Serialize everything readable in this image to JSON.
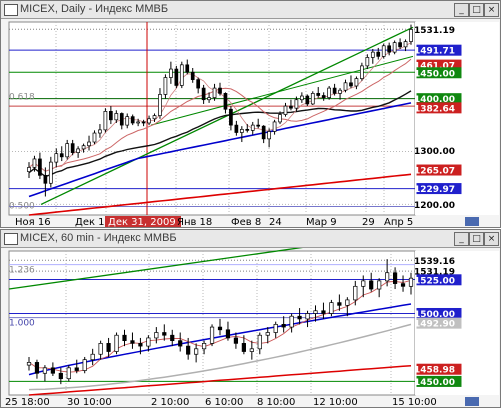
{
  "window1": {
    "title": "MICEX, Daily - Индекс ММВБ"
  },
  "window2": {
    "title": "MICEX, 60 min - Индекс ММВБ"
  },
  "chart_data": [
    {
      "type": "candlestick",
      "title": "MICEX, Daily - Индекс ММВБ",
      "ylim": [
        1180,
        1545
      ],
      "price_labels": [
        "1531.19",
        "1491.71",
        "1461.07",
        "1450.00",
        "1400.00",
        "1382.64",
        "1300.00",
        "1265.07",
        "1229.97",
        "1200.00"
      ],
      "fib_labels": [
        "0.618",
        "0.500"
      ],
      "x_labels": [
        "Ноя 16",
        "Дек 1",
        "Дек 31, 2009",
        "Янв 18",
        "Фев 8",
        "24",
        "Мар 9",
        "29",
        "Апр 5"
      ],
      "candles": [
        [
          1262,
          1280,
          1250,
          1270
        ],
        [
          1270,
          1292,
          1262,
          1286
        ],
        [
          1286,
          1298,
          1248,
          1255
        ],
        [
          1255,
          1270,
          1215,
          1240
        ],
        [
          1240,
          1290,
          1232,
          1280
        ],
        [
          1280,
          1306,
          1270,
          1296
        ],
        [
          1296,
          1310,
          1282,
          1290
        ],
        [
          1290,
          1322,
          1285,
          1315
        ],
        [
          1315,
          1322,
          1293,
          1298
        ],
        [
          1298,
          1310,
          1288,
          1305
        ],
        [
          1305,
          1315,
          1298,
          1311
        ],
        [
          1311,
          1330,
          1302,
          1318
        ],
        [
          1318,
          1340,
          1314,
          1335
        ],
        [
          1335,
          1352,
          1326,
          1341
        ],
        [
          1341,
          1382,
          1336,
          1376
        ],
        [
          1376,
          1386,
          1352,
          1360
        ],
        [
          1360,
          1378,
          1354,
          1372
        ],
        [
          1372,
          1374,
          1342,
          1350
        ],
        [
          1350,
          1372,
          1344,
          1366
        ],
        [
          1366,
          1370,
          1350,
          1354
        ],
        [
          1354,
          1362,
          1348,
          1356
        ],
        [
          1356,
          1360,
          1348,
          1354
        ],
        [
          1354,
          1368,
          1350,
          1362
        ],
        [
          1362,
          1372,
          1356,
          1368
        ],
        [
          1368,
          1420,
          1362,
          1408
        ],
        [
          1408,
          1446,
          1400,
          1440
        ],
        [
          1440,
          1470,
          1428,
          1456
        ],
        [
          1456,
          1462,
          1420,
          1425
        ],
        [
          1425,
          1470,
          1420,
          1464
        ],
        [
          1464,
          1474,
          1446,
          1450
        ],
        [
          1450,
          1458,
          1430,
          1436
        ],
        [
          1436,
          1440,
          1410,
          1420
        ],
        [
          1420,
          1426,
          1390,
          1398
        ],
        [
          1398,
          1412,
          1392,
          1402
        ],
        [
          1402,
          1428,
          1396,
          1420
        ],
        [
          1420,
          1430,
          1406,
          1410
        ],
        [
          1410,
          1412,
          1372,
          1380
        ],
        [
          1380,
          1386,
          1340,
          1350
        ],
        [
          1350,
          1358,
          1330,
          1336
        ],
        [
          1336,
          1348,
          1318,
          1342
        ],
        [
          1342,
          1352,
          1336,
          1340
        ],
        [
          1340,
          1356,
          1332,
          1350
        ],
        [
          1350,
          1362,
          1344,
          1348
        ],
        [
          1348,
          1350,
          1316,
          1324
        ],
        [
          1324,
          1344,
          1308,
          1338
        ],
        [
          1338,
          1360,
          1332,
          1356
        ],
        [
          1356,
          1376,
          1352,
          1370
        ],
        [
          1370,
          1392,
          1366,
          1386
        ],
        [
          1386,
          1398,
          1378,
          1382
        ],
        [
          1382,
          1404,
          1376,
          1398
        ],
        [
          1398,
          1412,
          1392,
          1405
        ],
        [
          1405,
          1408,
          1386,
          1390
        ],
        [
          1390,
          1414,
          1388,
          1410
        ],
        [
          1410,
          1422,
          1402,
          1406
        ],
        [
          1406,
          1412,
          1396,
          1402
        ],
        [
          1402,
          1424,
          1398,
          1420
        ],
        [
          1420,
          1428,
          1406,
          1410
        ],
        [
          1410,
          1420,
          1398,
          1416
        ],
        [
          1416,
          1436,
          1412,
          1430
        ],
        [
          1430,
          1444,
          1420,
          1424
        ],
        [
          1424,
          1442,
          1418,
          1438
        ],
        [
          1438,
          1468,
          1434,
          1462
        ],
        [
          1462,
          1484,
          1456,
          1478
        ],
        [
          1478,
          1494,
          1466,
          1488
        ],
        [
          1488,
          1496,
          1474,
          1480
        ],
        [
          1480,
          1504,
          1476,
          1500
        ],
        [
          1500,
          1506,
          1482,
          1488
        ],
        [
          1488,
          1510,
          1484,
          1506
        ],
        [
          1506,
          1514,
          1494,
          1498
        ],
        [
          1498,
          1512,
          1490,
          1508
        ],
        [
          1508,
          1540,
          1502,
          1531
        ]
      ]
    },
    {
      "type": "candlestick",
      "title": "MICEX, 60 min - Индекс ММВБ",
      "ylim": [
        1440,
        1546
      ],
      "price_labels": [
        "1539.16",
        "1531.19",
        "1525.00",
        "1500.00",
        "1492.90",
        "1458.98",
        "1450.00"
      ],
      "fib_labels": [
        "1.236",
        "1.000"
      ],
      "x_labels": [
        "25 18:00",
        "30 10:00",
        "2 10:00",
        "6 10:00",
        "8 10:00",
        "12 10:00",
        "15 10:00"
      ],
      "candles": [
        [
          1462,
          1468,
          1458,
          1464
        ],
        [
          1464,
          1466,
          1452,
          1456
        ],
        [
          1456,
          1462,
          1450,
          1460
        ],
        [
          1460,
          1464,
          1454,
          1456
        ],
        [
          1456,
          1460,
          1448,
          1452
        ],
        [
          1452,
          1462,
          1450,
          1460
        ],
        [
          1460,
          1466,
          1456,
          1458
        ],
        [
          1458,
          1468,
          1456,
          1466
        ],
        [
          1466,
          1474,
          1462,
          1470
        ],
        [
          1470,
          1480,
          1466,
          1478
        ],
        [
          1478,
          1482,
          1468,
          1472
        ],
        [
          1472,
          1486,
          1470,
          1484
        ],
        [
          1484,
          1488,
          1476,
          1480
        ],
        [
          1480,
          1486,
          1474,
          1478
        ],
        [
          1478,
          1482,
          1470,
          1476
        ],
        [
          1476,
          1484,
          1472,
          1482
        ],
        [
          1482,
          1490,
          1478,
          1486
        ],
        [
          1486,
          1492,
          1480,
          1484
        ],
        [
          1484,
          1488,
          1476,
          1480
        ],
        [
          1480,
          1486,
          1472,
          1476
        ],
        [
          1476,
          1482,
          1466,
          1470
        ],
        [
          1470,
          1478,
          1464,
          1474
        ],
        [
          1474,
          1480,
          1470,
          1478
        ],
        [
          1478,
          1492,
          1476,
          1490
        ],
        [
          1490,
          1496,
          1484,
          1488
        ],
        [
          1488,
          1494,
          1480,
          1482
        ],
        [
          1482,
          1486,
          1474,
          1478
        ],
        [
          1478,
          1484,
          1470,
          1472
        ],
        [
          1472,
          1480,
          1466,
          1474
        ],
        [
          1474,
          1486,
          1470,
          1484
        ],
        [
          1484,
          1490,
          1478,
          1486
        ],
        [
          1486,
          1494,
          1482,
          1492
        ],
        [
          1492,
          1498,
          1486,
          1490
        ],
        [
          1490,
          1500,
          1486,
          1498
        ],
        [
          1498,
          1504,
          1492,
          1496
        ],
        [
          1496,
          1502,
          1490,
          1500
        ],
        [
          1500,
          1506,
          1494,
          1502
        ],
        [
          1502,
          1508,
          1496,
          1500
        ],
        [
          1500,
          1510,
          1498,
          1508
        ],
        [
          1508,
          1514,
          1502,
          1506
        ],
        [
          1506,
          1512,
          1498,
          1510
        ],
        [
          1510,
          1524,
          1506,
          1520
        ],
        [
          1520,
          1528,
          1512,
          1524
        ],
        [
          1524,
          1530,
          1516,
          1518
        ],
        [
          1518,
          1526,
          1512,
          1524
        ],
        [
          1524,
          1540,
          1520,
          1530
        ],
        [
          1530,
          1534,
          1518,
          1522
        ],
        [
          1522,
          1528,
          1516,
          1520
        ],
        [
          1520,
          1530,
          1514,
          1526
        ]
      ]
    }
  ]
}
